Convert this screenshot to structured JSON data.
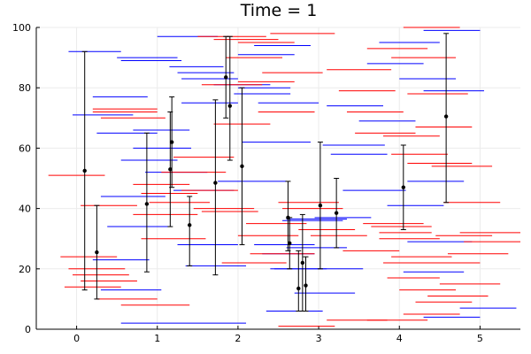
{
  "chart_data": {
    "type": "scatter",
    "title": "Time = 1",
    "xlabel": "",
    "ylabel": "",
    "xlim": [
      -0.5,
      5.5
    ],
    "ylim": [
      0,
      100
    ],
    "xticks": [
      0,
      1,
      2,
      3,
      4,
      5
    ],
    "yticks": [
      0,
      20,
      40,
      60,
      80,
      100
    ],
    "grid": true,
    "legend": "none",
    "colors": {
      "blue": "#0000ff",
      "red": "#ff0000",
      "black": "#000000",
      "grid": "#ebebeb"
    },
    "points": [
      {
        "x": 0.1,
        "y": 52.5,
        "ylo": 13,
        "yhi": 92
      },
      {
        "x": 0.25,
        "y": 25.5,
        "ylo": 10,
        "yhi": 41
      },
      {
        "x": 0.87,
        "y": 41.5,
        "ylo": 19,
        "yhi": 65
      },
      {
        "x": 1.16,
        "y": 53,
        "ylo": 34,
        "yhi": 72
      },
      {
        "x": 1.18,
        "y": 62,
        "ylo": 47,
        "yhi": 77
      },
      {
        "x": 1.4,
        "y": 34.5,
        "ylo": 21,
        "yhi": 44
      },
      {
        "x": 1.72,
        "y": 48.5,
        "ylo": 18,
        "yhi": 76
      },
      {
        "x": 1.85,
        "y": 83.5,
        "ylo": 70,
        "yhi": 97
      },
      {
        "x": 1.9,
        "y": 74,
        "ylo": 56,
        "yhi": 97
      },
      {
        "x": 2.05,
        "y": 54,
        "ylo": 28,
        "yhi": 80
      },
      {
        "x": 2.62,
        "y": 37,
        "ylo": 26,
        "yhi": 49
      },
      {
        "x": 2.64,
        "y": 28.5,
        "ylo": 20,
        "yhi": 37
      },
      {
        "x": 2.75,
        "y": 13.5,
        "ylo": 6,
        "yhi": 26
      },
      {
        "x": 2.8,
        "y": 22,
        "ylo": 6,
        "yhi": 38
      },
      {
        "x": 2.84,
        "y": 14.5,
        "ylo": 6,
        "yhi": 24
      },
      {
        "x": 3.02,
        "y": 41,
        "ylo": 20,
        "yhi": 62
      },
      {
        "x": 3.22,
        "y": 38.5,
        "ylo": 27,
        "yhi": 50
      },
      {
        "x": 4.05,
        "y": 47,
        "ylo": 33,
        "yhi": 61
      },
      {
        "x": 4.58,
        "y": 70.5,
        "ylo": 42,
        "yhi": 98
      }
    ],
    "blue_segments": [
      [
        -0.1,
        0.55,
        92
      ],
      [
        -0.05,
        0.7,
        71
      ],
      [
        0.2,
        0.88,
        77
      ],
      [
        0.2,
        0.9,
        23
      ],
      [
        0.3,
        1.05,
        13
      ],
      [
        0.5,
        1.25,
        90
      ],
      [
        0.55,
        1.3,
        89
      ],
      [
        0.25,
        1.0,
        65
      ],
      [
        0.3,
        1.1,
        44
      ],
      [
        0.38,
        1.18,
        34
      ],
      [
        0.55,
        1.25,
        56
      ],
      [
        0.7,
        1.4,
        66
      ],
      [
        0.7,
        1.42,
        60
      ],
      [
        0.85,
        1.62,
        52
      ],
      [
        1.0,
        1.75,
        97
      ],
      [
        1.25,
        1.95,
        85
      ],
      [
        1.15,
        1.82,
        87
      ],
      [
        1.3,
        2.0,
        83
      ],
      [
        1.2,
        1.95,
        46
      ],
      [
        1.25,
        2.0,
        28
      ],
      [
        1.35,
        2.1,
        21
      ],
      [
        0.55,
        2.1,
        2
      ],
      [
        1.3,
        2.0,
        75
      ],
      [
        1.7,
        2.4,
        81
      ],
      [
        2.0,
        2.65,
        80
      ],
      [
        1.95,
        2.65,
        78
      ],
      [
        1.75,
        2.6,
        49
      ],
      [
        2.0,
        2.7,
        91
      ],
      [
        2.2,
        2.9,
        94
      ],
      [
        2.05,
        2.9,
        62
      ],
      [
        2.25,
        3.0,
        75
      ],
      [
        2.2,
        2.95,
        28
      ],
      [
        2.3,
        2.95,
        25
      ],
      [
        2.4,
        3.1,
        20
      ],
      [
        2.55,
        3.3,
        36
      ],
      [
        2.6,
        3.35,
        36.5
      ],
      [
        2.95,
        3.65,
        37
      ],
      [
        2.7,
        3.45,
        12
      ],
      [
        2.6,
        3.35,
        27
      ],
      [
        2.45,
        3.55,
        20
      ],
      [
        3.1,
        3.8,
        74
      ],
      [
        3.05,
        3.82,
        61
      ],
      [
        3.15,
        3.85,
        58
      ],
      [
        3.3,
        4.08,
        46
      ],
      [
        3.5,
        4.2,
        69
      ],
      [
        3.6,
        4.3,
        88
      ],
      [
        3.75,
        4.5,
        95
      ],
      [
        4.0,
        4.7,
        83
      ],
      [
        4.3,
        5.0,
        99
      ],
      [
        4.3,
        5.05,
        79
      ],
      [
        4.1,
        4.8,
        49
      ],
      [
        3.85,
        4.55,
        41
      ],
      [
        4.05,
        4.8,
        19
      ],
      [
        4.3,
        5.0,
        4
      ],
      [
        4.1,
        4.9,
        29
      ],
      [
        4.75,
        5.45,
        7
      ],
      [
        2.35,
        3.05,
        6
      ]
    ],
    "red_segments": [
      [
        -0.35,
        0.35,
        51
      ],
      [
        -0.2,
        0.5,
        24
      ],
      [
        -0.15,
        0.55,
        14
      ],
      [
        -0.1,
        0.6,
        20
      ],
      [
        -0.05,
        0.65,
        18
      ],
      [
        0.05,
        0.75,
        41
      ],
      [
        0.2,
        1.0,
        73
      ],
      [
        0.2,
        1.0,
        72
      ],
      [
        0.3,
        1.1,
        70
      ],
      [
        0.05,
        0.75,
        16
      ],
      [
        0.25,
        1.0,
        10
      ],
      [
        0.55,
        1.4,
        8
      ],
      [
        0.7,
        1.4,
        48
      ],
      [
        0.8,
        1.5,
        45
      ],
      [
        0.7,
        1.5,
        38
      ],
      [
        0.8,
        1.6,
        30
      ],
      [
        0.9,
        1.65,
        42
      ],
      [
        1.05,
        1.85,
        52
      ],
      [
        1.2,
        1.95,
        57
      ],
      [
        1.3,
        2.0,
        46
      ],
      [
        1.45,
        2.2,
        40
      ],
      [
        1.55,
        2.25,
        39
      ],
      [
        1.5,
        2.35,
        97
      ],
      [
        1.7,
        2.5,
        96
      ],
      [
        1.55,
        2.3,
        81
      ],
      [
        1.7,
        2.4,
        68
      ],
      [
        1.85,
        2.55,
        90
      ],
      [
        2.0,
        2.7,
        95
      ],
      [
        2.0,
        2.7,
        82
      ],
      [
        2.3,
        3.05,
        85
      ],
      [
        2.25,
        2.95,
        72
      ],
      [
        2.4,
        3.2,
        98
      ],
      [
        1.8,
        2.6,
        22
      ],
      [
        2.0,
        2.75,
        31
      ],
      [
        2.1,
        2.85,
        35
      ],
      [
        2.15,
        2.95,
        25
      ],
      [
        2.5,
        3.25,
        42
      ],
      [
        2.55,
        3.3,
        40
      ],
      [
        2.75,
        3.45,
        33
      ],
      [
        2.9,
        3.6,
        31
      ],
      [
        3.1,
        3.9,
        86
      ],
      [
        3.25,
        3.95,
        79
      ],
      [
        3.35,
        4.05,
        72
      ],
      [
        3.45,
        4.2,
        65
      ],
      [
        3.6,
        4.35,
        93
      ],
      [
        3.9,
        4.7,
        90
      ],
      [
        4.05,
        4.75,
        100
      ],
      [
        4.1,
        4.85,
        78
      ],
      [
        4.2,
        4.9,
        67
      ],
      [
        3.8,
        4.5,
        64
      ],
      [
        3.9,
        4.6,
        58
      ],
      [
        4.1,
        4.9,
        55
      ],
      [
        4.4,
        5.15,
        54
      ],
      [
        4.55,
        5.25,
        42
      ],
      [
        3.75,
        4.5,
        30
      ],
      [
        3.65,
        4.4,
        34
      ],
      [
        3.55,
        4.3,
        35
      ],
      [
        3.9,
        4.65,
        24
      ],
      [
        3.8,
        4.5,
        22
      ],
      [
        3.85,
        4.5,
        17
      ],
      [
        4.0,
        4.7,
        13
      ],
      [
        4.35,
        5.1,
        11
      ],
      [
        4.5,
        5.25,
        15
      ],
      [
        4.75,
        5.5,
        32
      ],
      [
        4.8,
        5.5,
        29
      ],
      [
        4.6,
        5.35,
        25
      ],
      [
        4.45,
        5.15,
        31
      ],
      [
        4.3,
        5.0,
        22
      ],
      [
        4.2,
        4.9,
        9
      ],
      [
        4.05,
        4.75,
        5
      ],
      [
        3.6,
        4.35,
        3
      ],
      [
        2.5,
        3.2,
        1
      ],
      [
        3.1,
        3.85,
        3
      ],
      [
        3.75,
        4.4,
        32
      ],
      [
        3.3,
        4.0,
        26
      ]
    ]
  }
}
